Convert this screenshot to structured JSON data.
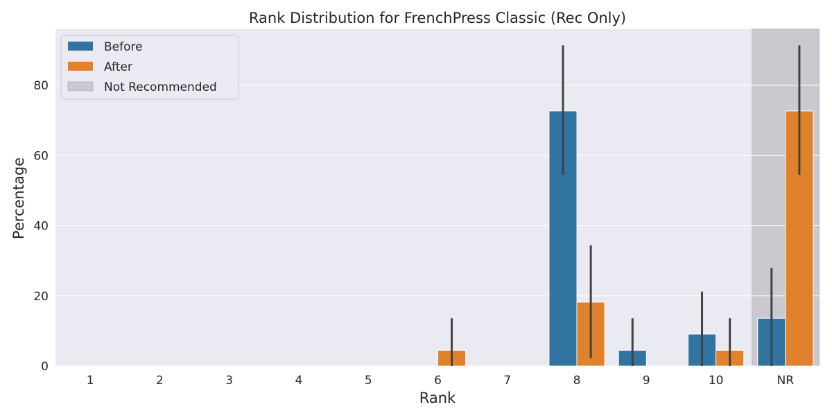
{
  "chart_data": {
    "type": "bar",
    "title": "Rank Distribution for FrenchPress Classic (Rec Only)",
    "xlabel": "Rank",
    "ylabel": "Percentage",
    "categories": [
      "1",
      "2",
      "3",
      "4",
      "5",
      "6",
      "7",
      "8",
      "9",
      "10",
      "NR"
    ],
    "ylim": [
      0,
      96
    ],
    "yticks": [
      0,
      20,
      40,
      60,
      80
    ],
    "grid": true,
    "legend_position": "top-left",
    "highlight": {
      "category": "NR",
      "label": "Not Recommended",
      "color": "#c9c9cf"
    },
    "series": [
      {
        "name": "Before",
        "color": "#3274a1",
        "values": [
          0,
          0,
          0,
          0,
          0,
          0,
          0,
          72.7,
          4.5,
          9.1,
          13.6
        ],
        "error_low": [
          0,
          0,
          0,
          0,
          0,
          0,
          0,
          54.5,
          0,
          0,
          0
        ],
        "error_high": [
          0,
          0,
          0,
          0,
          0,
          0,
          0,
          91.4,
          13.6,
          21.2,
          28.0
        ]
      },
      {
        "name": "After",
        "color": "#e1812c",
        "values": [
          0,
          0,
          0,
          0,
          0,
          4.5,
          0,
          18.2,
          0,
          4.5,
          72.7
        ],
        "error_low": [
          0,
          0,
          0,
          0,
          0,
          0,
          0,
          2.3,
          0,
          0,
          54.5
        ],
        "error_high": [
          0,
          0,
          0,
          0,
          0,
          13.6,
          0,
          34.4,
          0,
          13.6,
          91.4
        ]
      }
    ],
    "legend": [
      "Before",
      "After",
      "Not Recommended"
    ]
  }
}
